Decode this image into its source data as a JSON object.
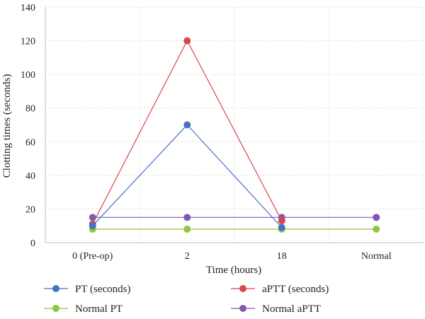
{
  "chart_data": {
    "type": "line",
    "title": "",
    "xlabel": "Time (hours)",
    "ylabel": "Clotting times (seconds)",
    "categories": [
      "0 (Pre-op)",
      "2",
      "18",
      "Normal"
    ],
    "ylim": [
      0,
      140
    ],
    "yticks": [
      0,
      20,
      40,
      60,
      80,
      100,
      120,
      140
    ],
    "grid": {
      "horizontal": true,
      "vertical": true,
      "style": "dotted"
    },
    "legend_position": "bottom",
    "series": [
      {
        "name": "PT (seconds)",
        "color": "#4472C4",
        "values": [
          10,
          70,
          9,
          null
        ]
      },
      {
        "name": "aPTT (seconds)",
        "color": "#D9474C",
        "values": [
          11,
          120,
          13,
          null
        ]
      },
      {
        "name": "Normal PT",
        "color": "#8DC63F",
        "values": [
          8,
          8,
          8,
          8
        ]
      },
      {
        "name": "Normal aPTT",
        "color": "#7E5BAF",
        "values": [
          15,
          15,
          15,
          15
        ]
      }
    ]
  }
}
